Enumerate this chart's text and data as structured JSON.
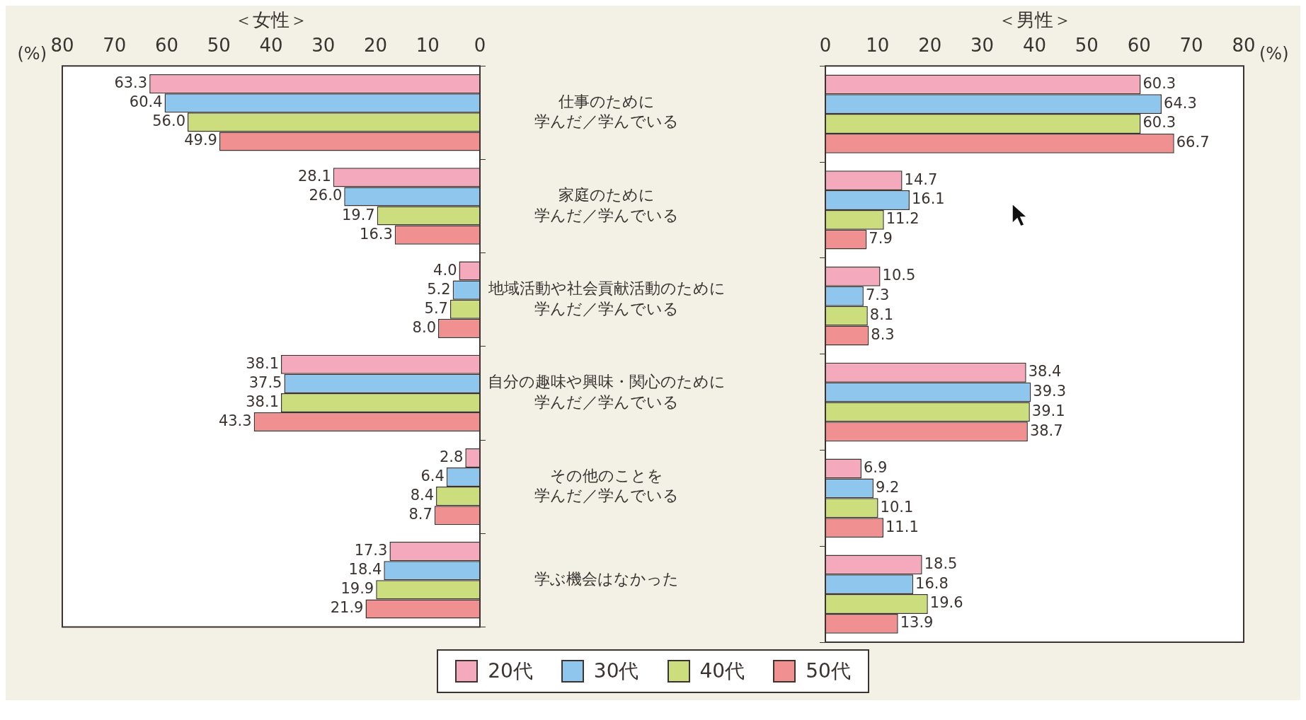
{
  "chart_data": [
    {
      "type": "bar",
      "orientation": "horizontal",
      "title": "＜女性＞",
      "xlabel": "(%)",
      "categories": [
        "仕事のために学んだ／学んでいる",
        "家庭のために学んだ／学んでいる",
        "地域活動や社会貢献活動のために学んだ／学んでいる",
        "自分の趣味や興味・関心のために学んだ／学んでいる",
        "その他のことを学んだ／学んでいる",
        "学ぶ機会はなかった"
      ],
      "xlim": [
        80,
        0
      ],
      "xticks": [
        80,
        70,
        60,
        50,
        40,
        30,
        20,
        10,
        0
      ],
      "legend": "bottom",
      "series": [
        {
          "name": "20代",
          "color": "#f5a9bc",
          "values": [
            63.3,
            28.1,
            4.0,
            38.1,
            2.8,
            17.3
          ],
          "value_labels": [
            "63.3",
            "28.1",
            "4.0",
            "38.1",
            "2.8",
            "17.3"
          ]
        },
        {
          "name": "30代",
          "color": "#8fc6ee",
          "values": [
            60.4,
            26.0,
            5.2,
            37.5,
            6.4,
            18.4
          ],
          "value_labels": [
            "60.4",
            "26.0",
            "5.2",
            "37.5",
            "6.4",
            "18.4"
          ]
        },
        {
          "name": "40代",
          "color": "#cbdd7c",
          "values": [
            56.0,
            19.7,
            5.7,
            38.1,
            8.4,
            19.9
          ],
          "value_labels": [
            "56.0",
            "19.7",
            "5.7",
            "38.1",
            "8.4",
            "19.9"
          ]
        },
        {
          "name": "50代",
          "color": "#f09090",
          "values": [
            49.9,
            16.3,
            8.0,
            43.3,
            8.7,
            21.9
          ],
          "value_labels": [
            "49.9",
            "16.3",
            "8.0",
            "43.3",
            "8.7",
            "21.9"
          ]
        }
      ]
    },
    {
      "type": "bar",
      "orientation": "horizontal",
      "title": "＜男性＞",
      "xlabel": "(%)",
      "categories": [
        "仕事のために学んだ／学んでいる",
        "家庭のために学んだ／学んでいる",
        "地域活動や社会貢献活動のために学んだ／学んでいる",
        "自分の趣味や興味・関心のために学んだ／学んでいる",
        "その他のことを学んだ／学んでいる",
        "学ぶ機会はなかった"
      ],
      "xlim": [
        0,
        80
      ],
      "xticks": [
        0,
        10,
        20,
        30,
        40,
        50,
        60,
        70,
        80
      ],
      "tick_labels": "x",
      "series": [
        {
          "name": "20代",
          "color": "#f5a9bc",
          "values": [
            60.3,
            14.7,
            10.5,
            38.4,
            6.9,
            18.5
          ],
          "value_labels": [
            "60.3",
            "14.7",
            "10.5",
            "38.4",
            "6.9",
            "18.5"
          ]
        },
        {
          "name": "30代",
          "color": "#8fc6ee",
          "values": [
            64.3,
            16.1,
            7.3,
            39.3,
            9.2,
            16.8
          ],
          "value_labels": [
            "64.3",
            "16.1",
            "7.3",
            "39.3",
            "9.2",
            "16.8"
          ]
        },
        {
          "name": "40代",
          "color": "#cbdd7c",
          "values": [
            60.3,
            11.2,
            8.1,
            39.1,
            10.1,
            19.6
          ],
          "value_labels": [
            "60.3",
            "11.2",
            "8.1",
            "39.1",
            "10.1",
            "19.6"
          ]
        },
        {
          "name": "50代",
          "color": "#f09090",
          "values": [
            66.7,
            7.9,
            8.3,
            38.7,
            11.1,
            13.9
          ],
          "value_labels": [
            "66.7",
            "7.9",
            "8.3",
            "38.7",
            "11.1",
            "13.9"
          ]
        }
      ]
    }
  ]
}
